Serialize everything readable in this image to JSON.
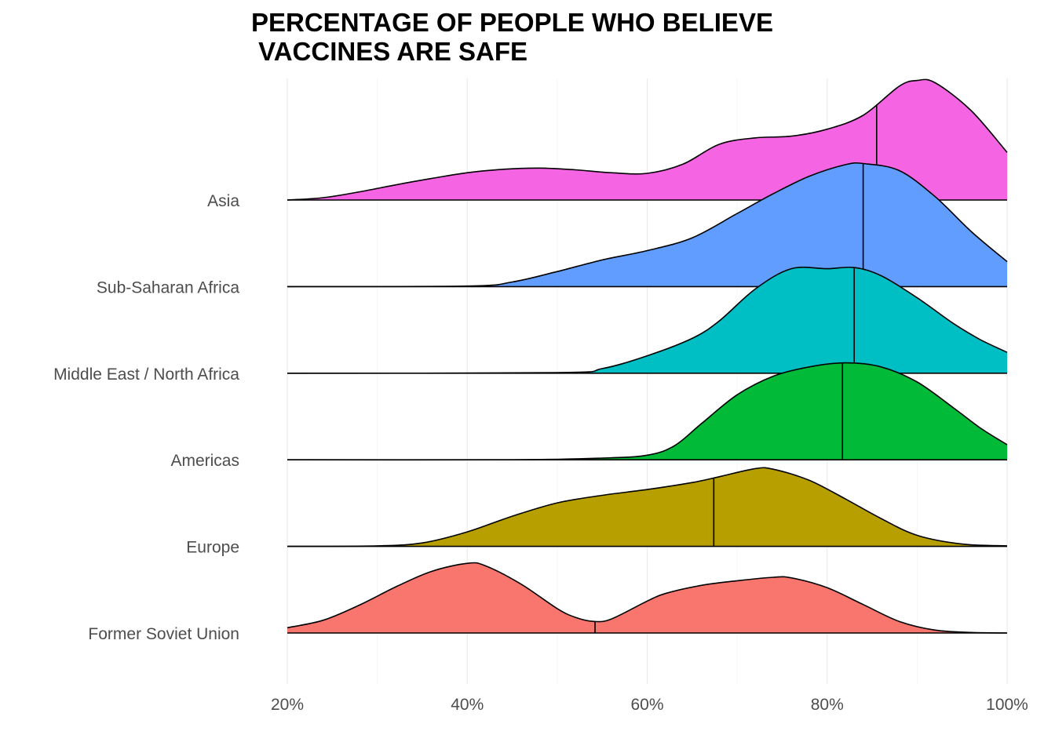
{
  "chart_data": {
    "type": "ridgeline",
    "title": "PERCENTAGE OF PEOPLE WHO BELIEVE\n VACCINES ARE SAFE",
    "xlabel": "",
    "ylabel": "",
    "x_ticks": [
      "20%",
      "40%",
      "60%",
      "80%",
      "100%"
    ],
    "x_tick_values": [
      20,
      40,
      60,
      80,
      100
    ],
    "xlim": [
      20,
      100
    ],
    "grid": true,
    "legend": "none",
    "categories": [
      "Former Soviet Union",
      "Europe",
      "Americas",
      "Middle East / North Africa",
      "Sub-Saharan Africa",
      "Asia"
    ],
    "series": [
      {
        "category": "Former Soviet Union",
        "color": "#F8766D",
        "median": 54.2,
        "density": [
          [
            20,
            0.09
          ],
          [
            24,
            0.22
          ],
          [
            28,
            0.48
          ],
          [
            32,
            0.79
          ],
          [
            36,
            1.06
          ],
          [
            40,
            1.2
          ],
          [
            42,
            1.16
          ],
          [
            46,
            0.84
          ],
          [
            50,
            0.42
          ],
          [
            52,
            0.27
          ],
          [
            54,
            0.2
          ],
          [
            56,
            0.24
          ],
          [
            60,
            0.55
          ],
          [
            62,
            0.68
          ],
          [
            66,
            0.82
          ],
          [
            70,
            0.9
          ],
          [
            74,
            0.96
          ],
          [
            76,
            0.95
          ],
          [
            80,
            0.78
          ],
          [
            84,
            0.49
          ],
          [
            88,
            0.2
          ],
          [
            92,
            0.05
          ],
          [
            96,
            0.01
          ],
          [
            100,
            0.0
          ]
        ]
      },
      {
        "category": "Europe",
        "color": "#B79F00",
        "median": 67.4,
        "density": [
          [
            20,
            0.0
          ],
          [
            30,
            0.01
          ],
          [
            35,
            0.06
          ],
          [
            40,
            0.25
          ],
          [
            45,
            0.52
          ],
          [
            50,
            0.75
          ],
          [
            55,
            0.88
          ],
          [
            60,
            0.98
          ],
          [
            65,
            1.1
          ],
          [
            68,
            1.2
          ],
          [
            72,
            1.34
          ],
          [
            74,
            1.33
          ],
          [
            78,
            1.14
          ],
          [
            82,
            0.82
          ],
          [
            86,
            0.48
          ],
          [
            90,
            0.19
          ],
          [
            95,
            0.04
          ],
          [
            100,
            0.01
          ]
        ]
      },
      {
        "category": "Americas",
        "color": "#00BA38",
        "median": 81.7,
        "density": [
          [
            20,
            0.0
          ],
          [
            45,
            0.0
          ],
          [
            55,
            0.03
          ],
          [
            60,
            0.08
          ],
          [
            63,
            0.24
          ],
          [
            66,
            0.62
          ],
          [
            70,
            1.12
          ],
          [
            74,
            1.44
          ],
          [
            78,
            1.6
          ],
          [
            82,
            1.67
          ],
          [
            86,
            1.6
          ],
          [
            90,
            1.34
          ],
          [
            94,
            0.9
          ],
          [
            97,
            0.55
          ],
          [
            100,
            0.26
          ]
        ]
      },
      {
        "category": "Middle East / North Africa",
        "color": "#00BFC4",
        "median": 83.0,
        "density": [
          [
            20,
            0.0
          ],
          [
            50,
            0.01
          ],
          [
            55,
            0.08
          ],
          [
            60,
            0.3
          ],
          [
            65,
            0.6
          ],
          [
            68,
            0.9
          ],
          [
            72,
            1.45
          ],
          [
            76,
            1.8
          ],
          [
            80,
            1.8
          ],
          [
            83,
            1.82
          ],
          [
            86,
            1.68
          ],
          [
            90,
            1.3
          ],
          [
            94,
            0.86
          ],
          [
            97,
            0.58
          ],
          [
            100,
            0.36
          ]
        ]
      },
      {
        "category": "Sub-Saharan Africa",
        "color": "#619CFF",
        "median": 84.0,
        "density": [
          [
            20,
            0.0
          ],
          [
            40,
            0.01
          ],
          [
            45,
            0.08
          ],
          [
            50,
            0.26
          ],
          [
            55,
            0.46
          ],
          [
            60,
            0.62
          ],
          [
            65,
            0.84
          ],
          [
            70,
            1.26
          ],
          [
            74,
            1.6
          ],
          [
            78,
            1.9
          ],
          [
            82,
            2.1
          ],
          [
            84,
            2.12
          ],
          [
            88,
            2.0
          ],
          [
            92,
            1.55
          ],
          [
            96,
            0.95
          ],
          [
            100,
            0.43
          ]
        ]
      },
      {
        "category": "Asia",
        "color": "#F564E3",
        "median": 85.5,
        "density": [
          [
            20,
            0.0
          ],
          [
            24,
            0.04
          ],
          [
            28,
            0.14
          ],
          [
            32,
            0.26
          ],
          [
            36,
            0.37
          ],
          [
            40,
            0.47
          ],
          [
            44,
            0.53
          ],
          [
            48,
            0.55
          ],
          [
            52,
            0.52
          ],
          [
            56,
            0.47
          ],
          [
            60,
            0.46
          ],
          [
            64,
            0.62
          ],
          [
            68,
            0.96
          ],
          [
            72,
            1.07
          ],
          [
            76,
            1.1
          ],
          [
            80,
            1.22
          ],
          [
            84,
            1.46
          ],
          [
            88,
            1.96
          ],
          [
            90,
            2.06
          ],
          [
            92,
            2.02
          ],
          [
            96,
            1.54
          ],
          [
            100,
            0.82
          ]
        ]
      }
    ]
  }
}
